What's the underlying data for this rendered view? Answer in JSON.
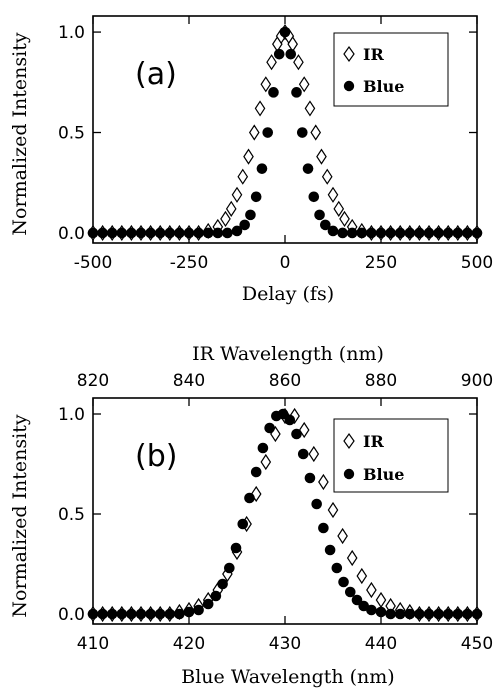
{
  "chart_data": [
    {
      "type": "scatter",
      "panel_label": "(a)",
      "xlabel": "Delay (fs)",
      "ylabel": "Normalized Intensity",
      "xlim": [
        -500,
        500
      ],
      "ylim": [
        -0.05,
        1.08
      ],
      "xticks": [
        -500,
        -250,
        0,
        250,
        500
      ],
      "xtick_labels": [
        "-500",
        "-250",
        "0",
        "250",
        "500"
      ],
      "yticks": [
        0.0,
        0.5,
        1.0
      ],
      "ytick_labels": [
        "0.0",
        "0.5",
        "1.0"
      ],
      "grid": false,
      "legend_position": "top-right",
      "series": [
        {
          "name": "IR",
          "marker": "open-diamond",
          "x": [
            -500,
            -475,
            -450,
            -425,
            -400,
            -375,
            -350,
            -325,
            -300,
            -275,
            -250,
            -225,
            -200,
            -175,
            -155,
            -140,
            -125,
            -110,
            -95,
            -80,
            -65,
            -50,
            -35,
            -20,
            -10,
            0,
            10,
            20,
            35,
            50,
            65,
            80,
            95,
            110,
            125,
            140,
            155,
            175,
            200,
            225,
            250,
            275,
            300,
            325,
            350,
            375,
            400,
            425,
            450,
            475,
            500
          ],
          "y": [
            0,
            0,
            0,
            0,
            0,
            0,
            0,
            0,
            0,
            0,
            0,
            0,
            0.01,
            0.03,
            0.07,
            0.12,
            0.19,
            0.28,
            0.38,
            0.5,
            0.62,
            0.74,
            0.85,
            0.94,
            0.98,
            1.0,
            0.98,
            0.94,
            0.85,
            0.74,
            0.62,
            0.5,
            0.38,
            0.28,
            0.19,
            0.12,
            0.07,
            0.03,
            0.01,
            0,
            0,
            0,
            0,
            0,
            0,
            0,
            0,
            0,
            0,
            0,
            0
          ]
        },
        {
          "name": "Blue",
          "marker": "filled-circle",
          "x": [
            -500,
            -475,
            -450,
            -425,
            -400,
            -375,
            -350,
            -325,
            -300,
            -275,
            -250,
            -225,
            -200,
            -175,
            -150,
            -125,
            -105,
            -90,
            -75,
            -60,
            -45,
            -30,
            -15,
            0,
            15,
            30,
            45,
            60,
            75,
            90,
            105,
            125,
            150,
            175,
            200,
            225,
            250,
            275,
            300,
            325,
            350,
            375,
            400,
            425,
            450,
            475,
            500
          ],
          "y": [
            0,
            0,
            0,
            0,
            0,
            0,
            0,
            0,
            0,
            0,
            0,
            0,
            0,
            0,
            0,
            0.01,
            0.04,
            0.09,
            0.18,
            0.32,
            0.5,
            0.7,
            0.89,
            1.0,
            0.89,
            0.7,
            0.5,
            0.32,
            0.18,
            0.09,
            0.04,
            0.01,
            0,
            0,
            0,
            0,
            0,
            0,
            0,
            0,
            0,
            0,
            0,
            0,
            0,
            0,
            0
          ]
        }
      ]
    },
    {
      "type": "scatter",
      "panel_label": "(b)",
      "xlabel": "Blue Wavelength (nm)",
      "x2label": "IR Wavelength (nm)",
      "ylabel": "Normalized Intensity",
      "xlim": [
        410,
        450
      ],
      "x2lim": [
        820,
        900
      ],
      "ylim": [
        -0.05,
        1.08
      ],
      "xticks": [
        410,
        420,
        430,
        440,
        450
      ],
      "xtick_labels": [
        "410",
        "420",
        "430",
        "440",
        "450"
      ],
      "x2ticks": [
        820,
        840,
        860,
        880,
        900
      ],
      "x2tick_labels": [
        "820",
        "840",
        "860",
        "880",
        "900"
      ],
      "yticks": [
        0.0,
        0.5,
        1.0
      ],
      "ytick_labels": [
        "0.0",
        "0.5",
        "1.0"
      ],
      "grid": false,
      "legend_position": "right",
      "series": [
        {
          "name": "IR",
          "marker": "open-diamond",
          "x_axis": "top",
          "x": [
            820,
            822,
            824,
            826,
            828,
            830,
            832,
            834,
            836,
            838,
            840,
            842,
            844,
            846,
            848,
            850,
            852,
            854,
            856,
            858,
            860,
            862,
            864,
            866,
            868,
            870,
            872,
            874,
            876,
            878,
            880,
            882,
            884,
            886,
            888,
            890,
            892,
            894,
            896,
            898,
            900
          ],
          "y": [
            0,
            0,
            0,
            0,
            0,
            0,
            0,
            0,
            0,
            0.01,
            0.02,
            0.04,
            0.07,
            0.12,
            0.2,
            0.31,
            0.45,
            0.6,
            0.76,
            0.9,
            0.99,
            0.99,
            0.92,
            0.8,
            0.66,
            0.52,
            0.39,
            0.28,
            0.19,
            0.12,
            0.07,
            0.04,
            0.02,
            0.01,
            0,
            0,
            0,
            0,
            0,
            0,
            0
          ]
        },
        {
          "name": "Blue",
          "marker": "filled-circle",
          "x_axis": "bottom",
          "x": [
            410,
            411,
            412,
            413,
            414,
            415,
            416,
            417,
            418,
            419,
            420,
            421,
            422,
            422.8,
            423.5,
            424.2,
            424.9,
            425.6,
            426.3,
            427,
            427.7,
            428.4,
            429.1,
            429.8,
            430.5,
            431.2,
            431.9,
            432.6,
            433.3,
            434,
            434.7,
            435.4,
            436.1,
            436.8,
            437.5,
            438.2,
            439,
            440,
            441,
            442,
            443,
            444,
            445,
            446,
            447,
            448,
            449,
            450
          ],
          "y": [
            0,
            0,
            0,
            0,
            0,
            0,
            0,
            0,
            0,
            0,
            0.01,
            0.02,
            0.05,
            0.09,
            0.15,
            0.23,
            0.33,
            0.45,
            0.58,
            0.71,
            0.83,
            0.93,
            0.99,
            1.0,
            0.97,
            0.9,
            0.8,
            0.68,
            0.55,
            0.43,
            0.32,
            0.23,
            0.16,
            0.11,
            0.07,
            0.04,
            0.02,
            0.01,
            0,
            0,
            0,
            0,
            0,
            0,
            0,
            0,
            0,
            0
          ]
        }
      ]
    }
  ]
}
